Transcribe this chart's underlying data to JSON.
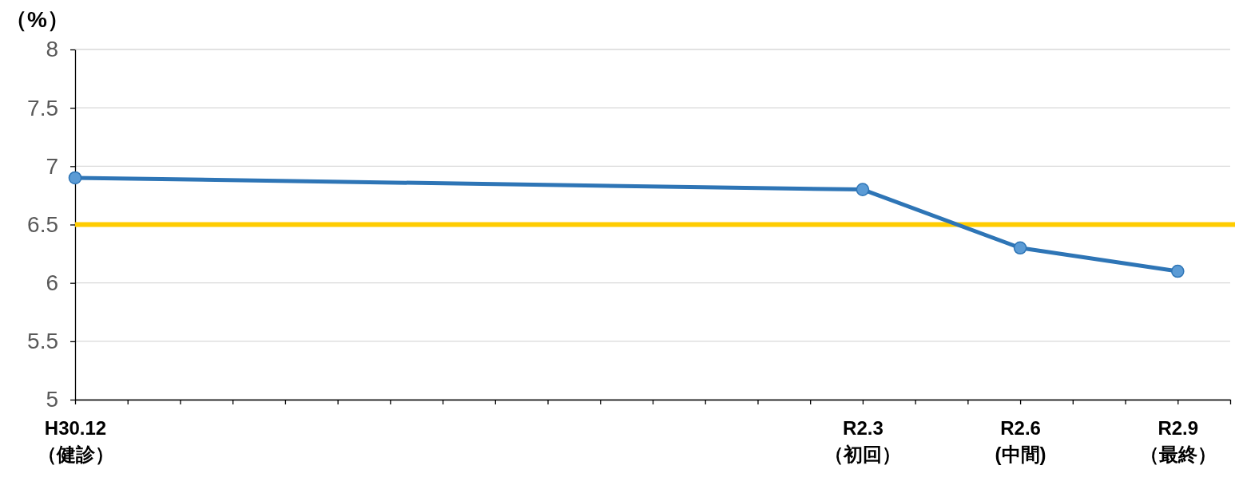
{
  "chart_data": {
    "type": "line",
    "ylabel": "（%）",
    "categories": [
      "H30.12\n（健診）",
      null,
      null,
      null,
      null,
      null,
      null,
      null,
      null,
      null,
      null,
      null,
      null,
      null,
      null,
      "R2.3\n（初回）",
      null,
      null,
      "R2.6\n(中間)",
      null,
      null,
      "R2.9\n（最終）",
      null
    ],
    "series": [
      {
        "color": "#2e75b6",
        "values": [
          6.9,
          null,
          null,
          null,
          null,
          null,
          null,
          null,
          null,
          null,
          null,
          null,
          null,
          null,
          null,
          6.8,
          null,
          null,
          6.3,
          null,
          null,
          6.1,
          null
        ]
      }
    ],
    "marker": "circle",
    "line_style": "solid",
    "ylim": [
      5,
      8
    ],
    "yticks": [
      5,
      5.5,
      6,
      6.5,
      7,
      7.5,
      8
    ],
    "grid": "y",
    "ref_lines": [
      {
        "axis": "y",
        "value": 6.5,
        "label": null,
        "color": "#ffcc00"
      }
    ]
  }
}
